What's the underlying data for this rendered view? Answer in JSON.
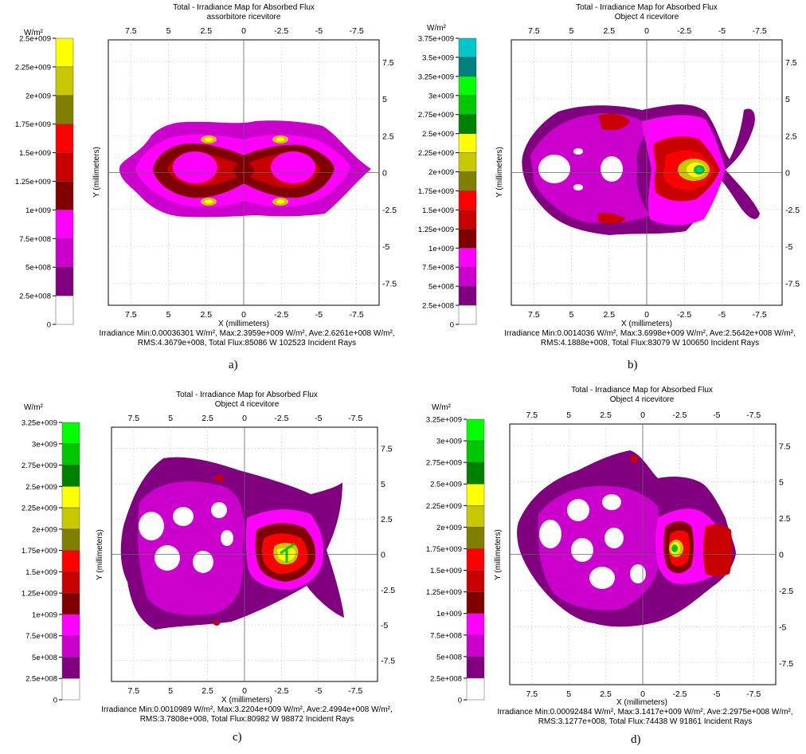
{
  "chart_data": [
    {
      "type": "heatmap",
      "panel_label": "a)",
      "title": "Total - Irradiance Map for Absorbed Flux",
      "subtitle": "assorbitore ricevitore",
      "xlabel": "X (millimeters)",
      "ylabel": "Y (millimeters)",
      "colorbar_unit": "W/m²",
      "colorbar_ticks": [
        "2.5e+009",
        "2.25e+009",
        "2e+009",
        "1.75e+009",
        "1.5e+009",
        "1.25e+009",
        "1e+009",
        "7.5e+008",
        "5e+008",
        "2.5e+008",
        "0"
      ],
      "colorbar_colors": [
        "#ffff00",
        "#c8c800",
        "#807f00",
        "#ff0000",
        "#c80000",
        "#800000",
        "#ff00ff",
        "#cc00cc",
        "#800080",
        "#ffffff"
      ],
      "x_ticks": [
        "7.5",
        "5",
        "2.5",
        "0",
        "-2.5",
        "-5",
        "-7.5"
      ],
      "y_ticks": [
        "7.5",
        "5",
        "2.5",
        "0",
        "-2.5",
        "-5",
        "-7.5"
      ],
      "stats_line1": "Irradiance Min:0.00036301 W/m², Max:2.3959e+009 W/m², Ave:2.6261e+008 W/m²,",
      "stats_line2": "RMS:4.3679e+008, Total Flux:85086 W 102523 Incident Rays"
    },
    {
      "type": "heatmap",
      "panel_label": "b)",
      "title": "Total - Irradiance Map for Absorbed Flux",
      "subtitle": "Object 4 ricevitore",
      "xlabel": "X (millimeters)",
      "ylabel": "Y (millimeters)",
      "colorbar_unit": "W/m²",
      "colorbar_ticks": [
        "3.75e+009",
        "3.5e+009",
        "3.25e+009",
        "3e+009",
        "2.75e+009",
        "2.5e+009",
        "2.25e+009",
        "2e+009",
        "1.75e+009",
        "1.5e+009",
        "1.25e+009",
        "1e+009",
        "7.5e+008",
        "5e+008",
        "2.5e+008",
        "0"
      ],
      "colorbar_colors": [
        "#00c8c8",
        "#008080",
        "#00ff00",
        "#00c800",
        "#008000",
        "#ffff00",
        "#c8c800",
        "#807f00",
        "#ff0000",
        "#c80000",
        "#800000",
        "#ff00ff",
        "#cc00cc",
        "#800080",
        "#ffffff"
      ],
      "x_ticks": [
        "7.5",
        "5",
        "2.5",
        "0",
        "-2.5",
        "-5",
        "-7.5"
      ],
      "y_ticks": [
        "7.5",
        "5",
        "2.5",
        "0",
        "-2.5",
        "-5",
        "-7.5"
      ],
      "stats_line1": "Irradiance Min:0.0014036 W/m², Max:3.6998e+009 W/m², Ave:2.5642e+008 W/m²,",
      "stats_line2": "RMS:4.1888e+008, Total Flux:83079 W 100650 Incident Rays"
    },
    {
      "type": "heatmap",
      "panel_label": "c)",
      "title": "Total - Irradiance Map for Absorbed Flux",
      "subtitle": "Object 4 ricevitore",
      "xlabel": "X (millimeters)",
      "ylabel": "Y (millimeters)",
      "colorbar_unit": "W/m²",
      "colorbar_ticks": [
        "3.25e+009",
        "3e+009",
        "2.75e+009",
        "2.5e+009",
        "2.25e+009",
        "2e+009",
        "1.75e+009",
        "1.5e+009",
        "1.25e+009",
        "1e+009",
        "7.5e+008",
        "5e+008",
        "2.5e+008",
        "0"
      ],
      "colorbar_colors": [
        "#00ff00",
        "#00c800",
        "#008000",
        "#ffff00",
        "#c8c800",
        "#807f00",
        "#ff0000",
        "#c80000",
        "#800000",
        "#ff00ff",
        "#cc00cc",
        "#800080",
        "#ffffff"
      ],
      "x_ticks": [
        "7.5",
        "5",
        "2.5",
        "0",
        "-2.5",
        "-5",
        "-7.5"
      ],
      "y_ticks": [
        "7.5",
        "5",
        "2.5",
        "0",
        "-2.5",
        "-5",
        "-7.5"
      ],
      "stats_line1": "Irradiance Min:0.0010989 W/m², Max:3.2204e+009 W/m², Ave:2.4994e+008 W/m²,",
      "stats_line2": "RMS:3.7808e+008, Total Flux:80982 W 98872 Incident Rays"
    },
    {
      "type": "heatmap",
      "panel_label": "d)",
      "title": "Total - Irradiance Map for Absorbed Flux",
      "subtitle": "Object 4 ricevitore",
      "xlabel": "X (millimeters)",
      "ylabel": "Y (millimeters)",
      "colorbar_unit": "W/m²",
      "colorbar_ticks": [
        "3.25e+009",
        "3e+009",
        "2.75e+009",
        "2.5e+009",
        "2.25e+009",
        "2e+009",
        "1.75e+009",
        "1.5e+009",
        "1.25e+009",
        "1e+009",
        "7.5e+008",
        "5e+008",
        "2.5e+008",
        "0"
      ],
      "colorbar_colors": [
        "#00ff00",
        "#00c800",
        "#008000",
        "#ffff00",
        "#c8c800",
        "#807f00",
        "#ff0000",
        "#c80000",
        "#800000",
        "#ff00ff",
        "#cc00cc",
        "#800080",
        "#ffffff"
      ],
      "x_ticks": [
        "7.5",
        "5",
        "2.5",
        "0",
        "-2.5",
        "-5",
        "-7.5"
      ],
      "y_ticks": [
        "7.5",
        "5",
        "2.5",
        "0",
        "-2.5",
        "-5",
        "-7.5"
      ],
      "stats_line1": "Irradiance Min:0.00092484 W/m², Max:3.1417e+009 W/m², Ave:2.2975e+008 W/m²,",
      "stats_line2": "RMS:3.1277e+008, Total Flux:74438 W 91861 Incident Rays"
    }
  ]
}
